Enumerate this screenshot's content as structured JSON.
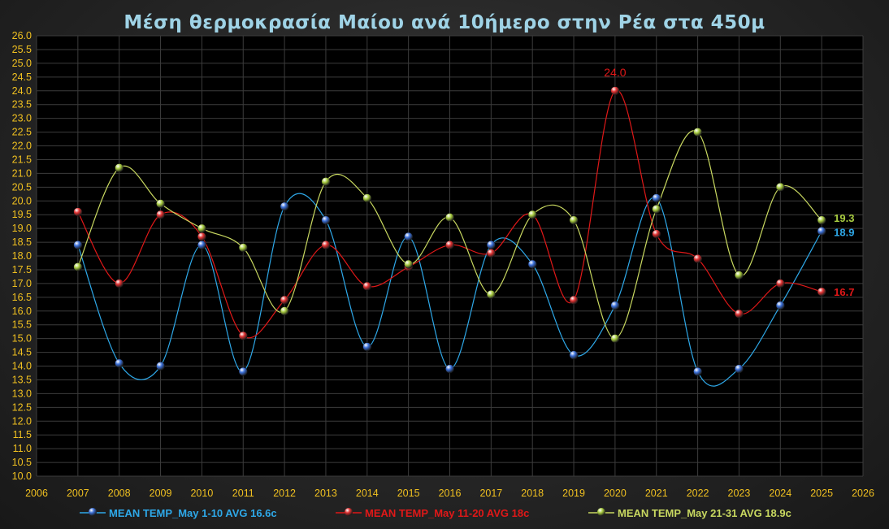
{
  "chart_data": {
    "type": "line",
    "title": "Μέση θερμοκρασία Μαίου ανά 10ήμερο στην Ρέα στα 450μ",
    "xlim": [
      2006,
      2026
    ],
    "ylim": [
      10.0,
      26.0
    ],
    "x": [
      2007,
      2008,
      2009,
      2010,
      2011,
      2012,
      2013,
      2014,
      2015,
      2016,
      2017,
      2018,
      2019,
      2020,
      2021,
      2022,
      2023,
      2024,
      2025
    ],
    "series": [
      {
        "name": "MEAN TEMP_May 1-10 AVG 16.6c",
        "color": "#2ea8e8",
        "marker_color": "#3a6fd8",
        "values": [
          18.4,
          14.1,
          14.0,
          18.4,
          13.8,
          19.8,
          19.3,
          14.7,
          18.7,
          13.9,
          18.4,
          17.7,
          14.4,
          16.2,
          20.1,
          13.8,
          13.9,
          16.2,
          18.9
        ]
      },
      {
        "name": "MEAN TEMP_May 11-20 AVG 18c",
        "color": "#e01818",
        "marker_color": "#e03030",
        "values": [
          19.6,
          17.0,
          19.5,
          18.7,
          15.1,
          16.4,
          18.4,
          16.9,
          17.6,
          18.4,
          18.1,
          19.5,
          16.4,
          24.0,
          18.8,
          17.9,
          15.9,
          17.0,
          16.7
        ]
      },
      {
        "name": "MEAN TEMP_May 21-31 AVG 18.9c",
        "color": "#c8d860",
        "marker_color": "#a8cc40",
        "values": [
          17.6,
          21.2,
          19.9,
          19.0,
          18.3,
          16.0,
          20.7,
          20.1,
          17.7,
          19.4,
          16.6,
          19.5,
          19.3,
          15.0,
          19.7,
          22.5,
          17.3,
          20.5,
          19.3
        ]
      }
    ],
    "annotations": [
      {
        "text": "24.0",
        "series": 1,
        "index": 13,
        "color": "#e01818"
      },
      {
        "text": "19.3",
        "series": 2,
        "index": 18,
        "color": "#a8cc40"
      },
      {
        "text": "18.9",
        "series": 0,
        "index": 18,
        "color": "#2ea8e8"
      },
      {
        "text": "16.7",
        "series": 1,
        "index": 18,
        "color": "#e01818"
      }
    ],
    "grid": true,
    "legend": "bottom"
  }
}
